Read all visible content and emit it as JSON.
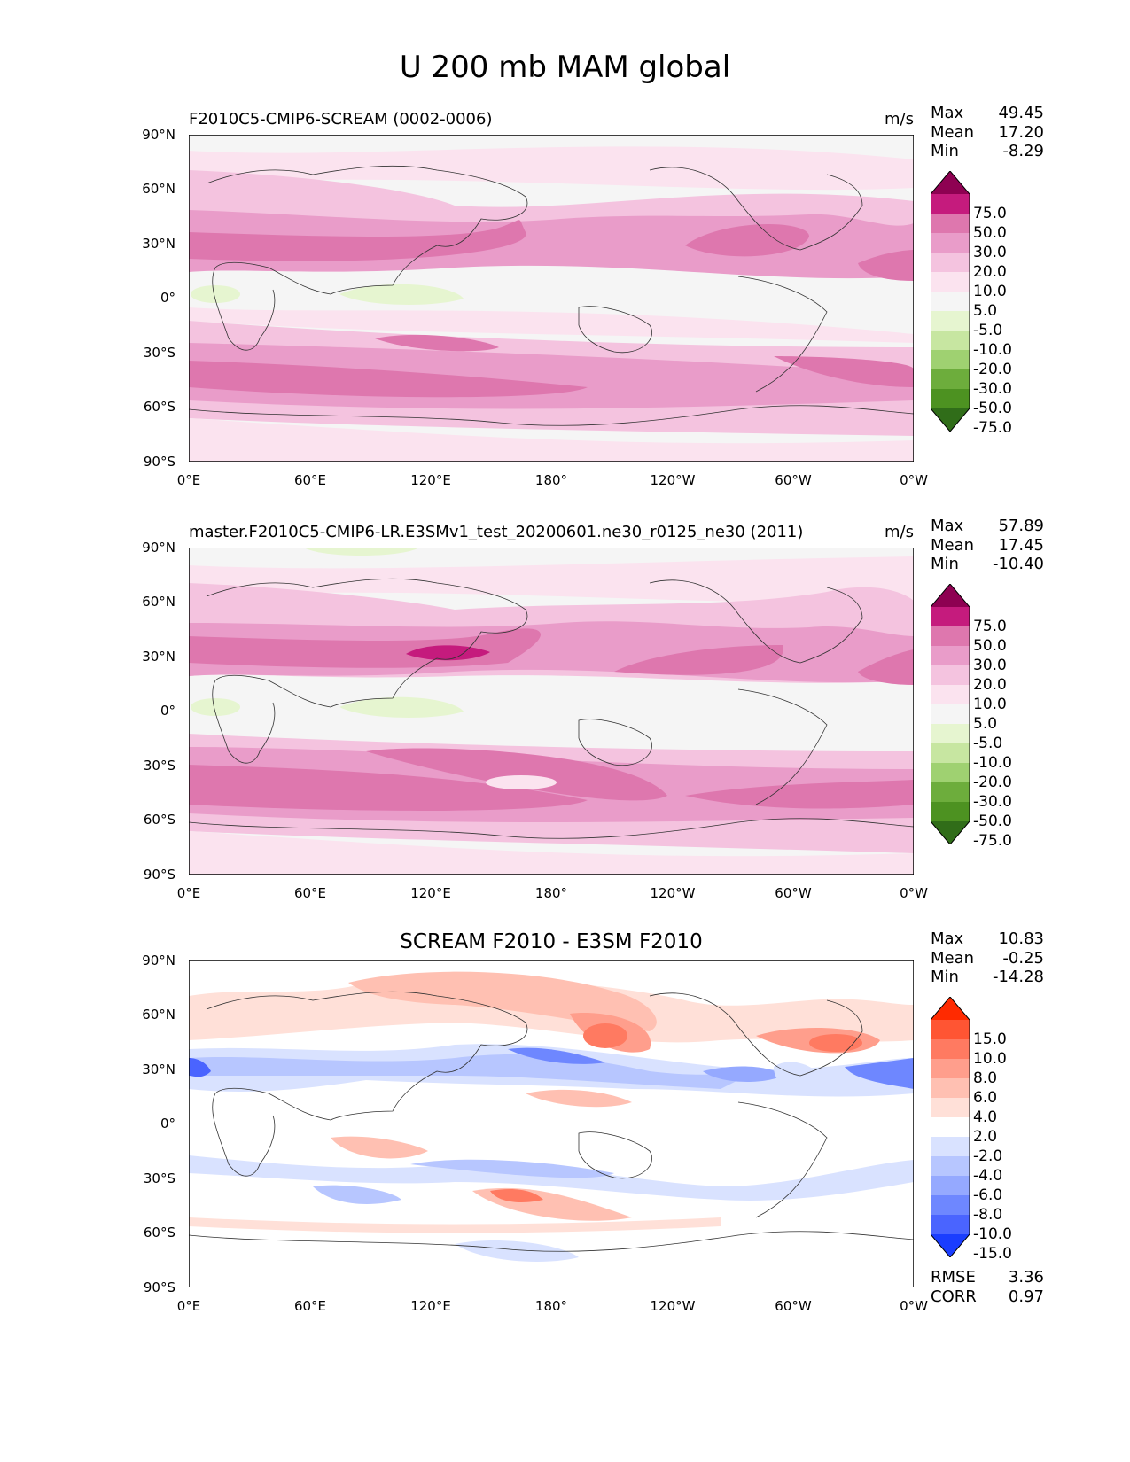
{
  "figure": {
    "title": "U 200 mb MAM global"
  },
  "panels": [
    {
      "title_left": "F2010C5-CMIP6-SCREAM (0002-0006)",
      "title_center": "",
      "units": "m/s",
      "stats": {
        "max_label": "Max",
        "max": "49.45",
        "mean_label": "Mean",
        "mean": "17.20",
        "min_label": "Min",
        "min": "-8.29"
      },
      "colorbar": {
        "labels": [
          "75.0",
          "50.0",
          "30.0",
          "20.0",
          "10.0",
          "5.0",
          "-5.0",
          "-10.0",
          "-20.0",
          "-30.0",
          "-50.0",
          "-75.0"
        ],
        "colors": [
          "#8e0152",
          "#c51b7d",
          "#de77ae",
          "#e99cc9",
          "#f4c3df",
          "#fbe3ef",
          "#f5f5f5",
          "#e6f5d0",
          "#c7e6a1",
          "#9fd171",
          "#6dad3c",
          "#4d9221",
          "#306d19"
        ]
      }
    },
    {
      "title_left": "master.F2010C5-CMIP6-LR.E3SMv1_test_20200601.ne30_r0125_ne30 (2011)",
      "title_center": "",
      "units": "m/s",
      "stats": {
        "max_label": "Max",
        "max": "57.89",
        "mean_label": "Mean",
        "mean": "17.45",
        "min_label": "Min",
        "min": "-10.40"
      },
      "colorbar": {
        "labels": [
          "75.0",
          "50.0",
          "30.0",
          "20.0",
          "10.0",
          "5.0",
          "-5.0",
          "-10.0",
          "-20.0",
          "-30.0",
          "-50.0",
          "-75.0"
        ],
        "colors": [
          "#8e0152",
          "#c51b7d",
          "#de77ae",
          "#e99cc9",
          "#f4c3df",
          "#fbe3ef",
          "#f5f5f5",
          "#e6f5d0",
          "#c7e6a1",
          "#9fd171",
          "#6dad3c",
          "#4d9221",
          "#306d19"
        ]
      }
    },
    {
      "title_left": "",
      "title_center": "SCREAM F2010 - E3SM F2010",
      "units": "",
      "stats": {
        "max_label": "Max",
        "max": "10.83",
        "mean_label": "Mean",
        "mean": "-0.25",
        "min_label": "Min",
        "min": "-14.28"
      },
      "colorbar": {
        "labels": [
          "15.0",
          "10.0",
          "8.0",
          "6.0",
          "4.0",
          "2.0",
          "-2.0",
          "-4.0",
          "-6.0",
          "-8.0",
          "-10.0",
          "-15.0"
        ],
        "colors": [
          "#ff2a00",
          "#ff5533",
          "#ff7a61",
          "#ff9e8c",
          "#ffc0b2",
          "#ffe0d8",
          "#ffffff",
          "#d9e2ff",
          "#b7c6ff",
          "#95a9ff",
          "#6e87ff",
          "#4a64ff",
          "#1a3dff"
        ]
      },
      "metrics": {
        "rmse_label": "RMSE",
        "rmse": "3.36",
        "corr_label": "CORR",
        "corr": "0.97"
      }
    }
  ],
  "axes": {
    "y_ticks": [
      "90°N",
      "60°N",
      "30°N",
      "0°",
      "30°S",
      "60°S",
      "90°S"
    ],
    "x_ticks": [
      "0°E",
      "60°E",
      "120°E",
      "180°",
      "120°W",
      "60°W",
      "0°W"
    ]
  }
}
